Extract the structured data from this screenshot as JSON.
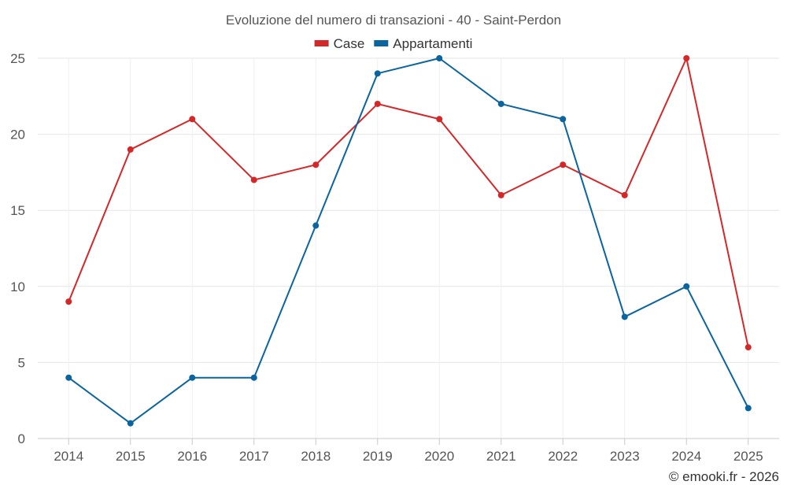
{
  "chart_data": {
    "type": "line",
    "title": "Evoluzione del numero di transazioni - 40 - Saint-Perdon",
    "xlabel": "",
    "ylabel": "",
    "categories": [
      "2014",
      "2015",
      "2016",
      "2017",
      "2018",
      "2019",
      "2020",
      "2021",
      "2022",
      "2023",
      "2024",
      "2025"
    ],
    "ylim": [
      0,
      25
    ],
    "yticks": [
      0,
      5,
      10,
      15,
      20,
      25
    ],
    "grid": true,
    "legend_position": "top-center",
    "series": [
      {
        "name": "Case",
        "color": "#d62728",
        "values": [
          9,
          19,
          21,
          17,
          18,
          22,
          21,
          16,
          18,
          16,
          25,
          6
        ]
      },
      {
        "name": "Appartamenti",
        "color": "#0a64a0",
        "values": [
          4,
          1,
          4,
          4,
          14,
          24,
          25,
          22,
          21,
          8,
          10,
          2
        ]
      }
    ]
  },
  "credit": "© emooki.fr - 2026"
}
